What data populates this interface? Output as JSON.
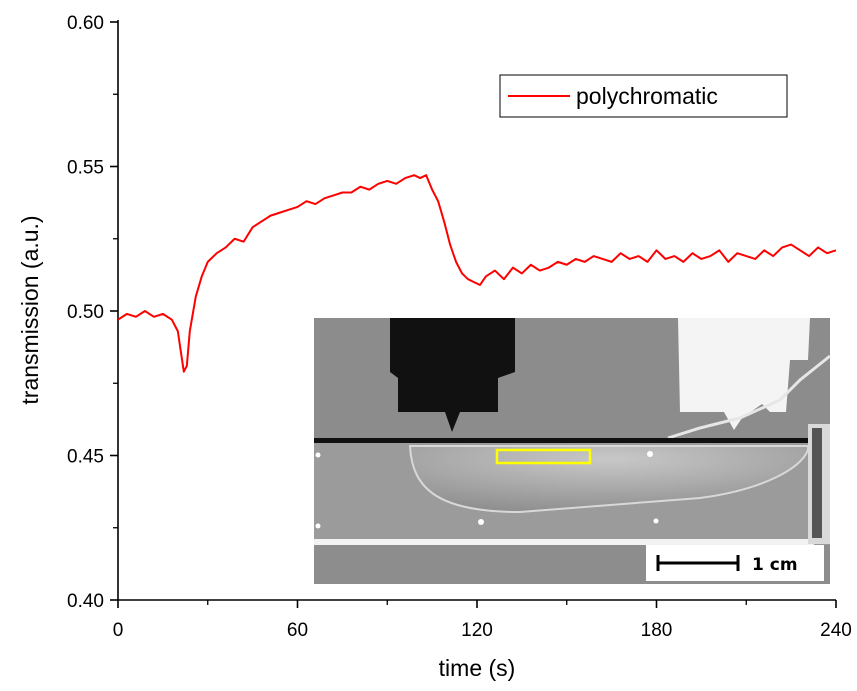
{
  "chart_data": {
    "type": "line",
    "xlabel": "time (s)",
    "ylabel": "transmission (a.u.)",
    "xlim": [
      0,
      240
    ],
    "ylim": [
      0.4,
      0.6
    ],
    "x_ticks": [
      "0",
      "60",
      "120",
      "180",
      "240"
    ],
    "y_ticks": [
      "0.40",
      "0.45",
      "0.50",
      "0.55",
      "0.60"
    ],
    "legend_position": "top-right",
    "series": [
      {
        "name": "polychromatic",
        "color": "#ff0000",
        "x": [
          0,
          3,
          6,
          9,
          12,
          15,
          18,
          20,
          21,
          22,
          23,
          24,
          26,
          28,
          30,
          33,
          36,
          39,
          42,
          45,
          48,
          51,
          54,
          57,
          60,
          63,
          66,
          69,
          72,
          75,
          78,
          81,
          84,
          87,
          90,
          93,
          96,
          99,
          101,
          103,
          105,
          107,
          109,
          111,
          113,
          115,
          117,
          119,
          121,
          123,
          126,
          129,
          132,
          135,
          138,
          141,
          144,
          147,
          150,
          153,
          156,
          159,
          162,
          165,
          168,
          171,
          174,
          177,
          180,
          183,
          186,
          189,
          192,
          195,
          198,
          201,
          204,
          207,
          210,
          213,
          216,
          219,
          222,
          225,
          228,
          231,
          234,
          237,
          240
        ],
        "y": [
          0.497,
          0.499,
          0.498,
          0.5,
          0.498,
          0.499,
          0.497,
          0.493,
          0.486,
          0.479,
          0.481,
          0.493,
          0.505,
          0.512,
          0.517,
          0.52,
          0.522,
          0.525,
          0.524,
          0.529,
          0.531,
          0.533,
          0.534,
          0.535,
          0.536,
          0.538,
          0.537,
          0.539,
          0.54,
          0.541,
          0.541,
          0.543,
          0.542,
          0.544,
          0.545,
          0.544,
          0.546,
          0.547,
          0.546,
          0.547,
          0.542,
          0.538,
          0.531,
          0.523,
          0.517,
          0.513,
          0.511,
          0.51,
          0.509,
          0.512,
          0.514,
          0.511,
          0.515,
          0.513,
          0.516,
          0.514,
          0.515,
          0.517,
          0.516,
          0.518,
          0.517,
          0.519,
          0.518,
          0.517,
          0.52,
          0.518,
          0.519,
          0.517,
          0.521,
          0.518,
          0.519,
          0.517,
          0.52,
          0.518,
          0.519,
          0.521,
          0.517,
          0.52,
          0.519,
          0.518,
          0.521,
          0.519,
          0.522,
          0.523,
          0.521,
          0.519,
          0.522,
          0.52,
          0.521
        ]
      }
    ],
    "inset": {
      "scale_bar_label": "1 cm"
    }
  }
}
